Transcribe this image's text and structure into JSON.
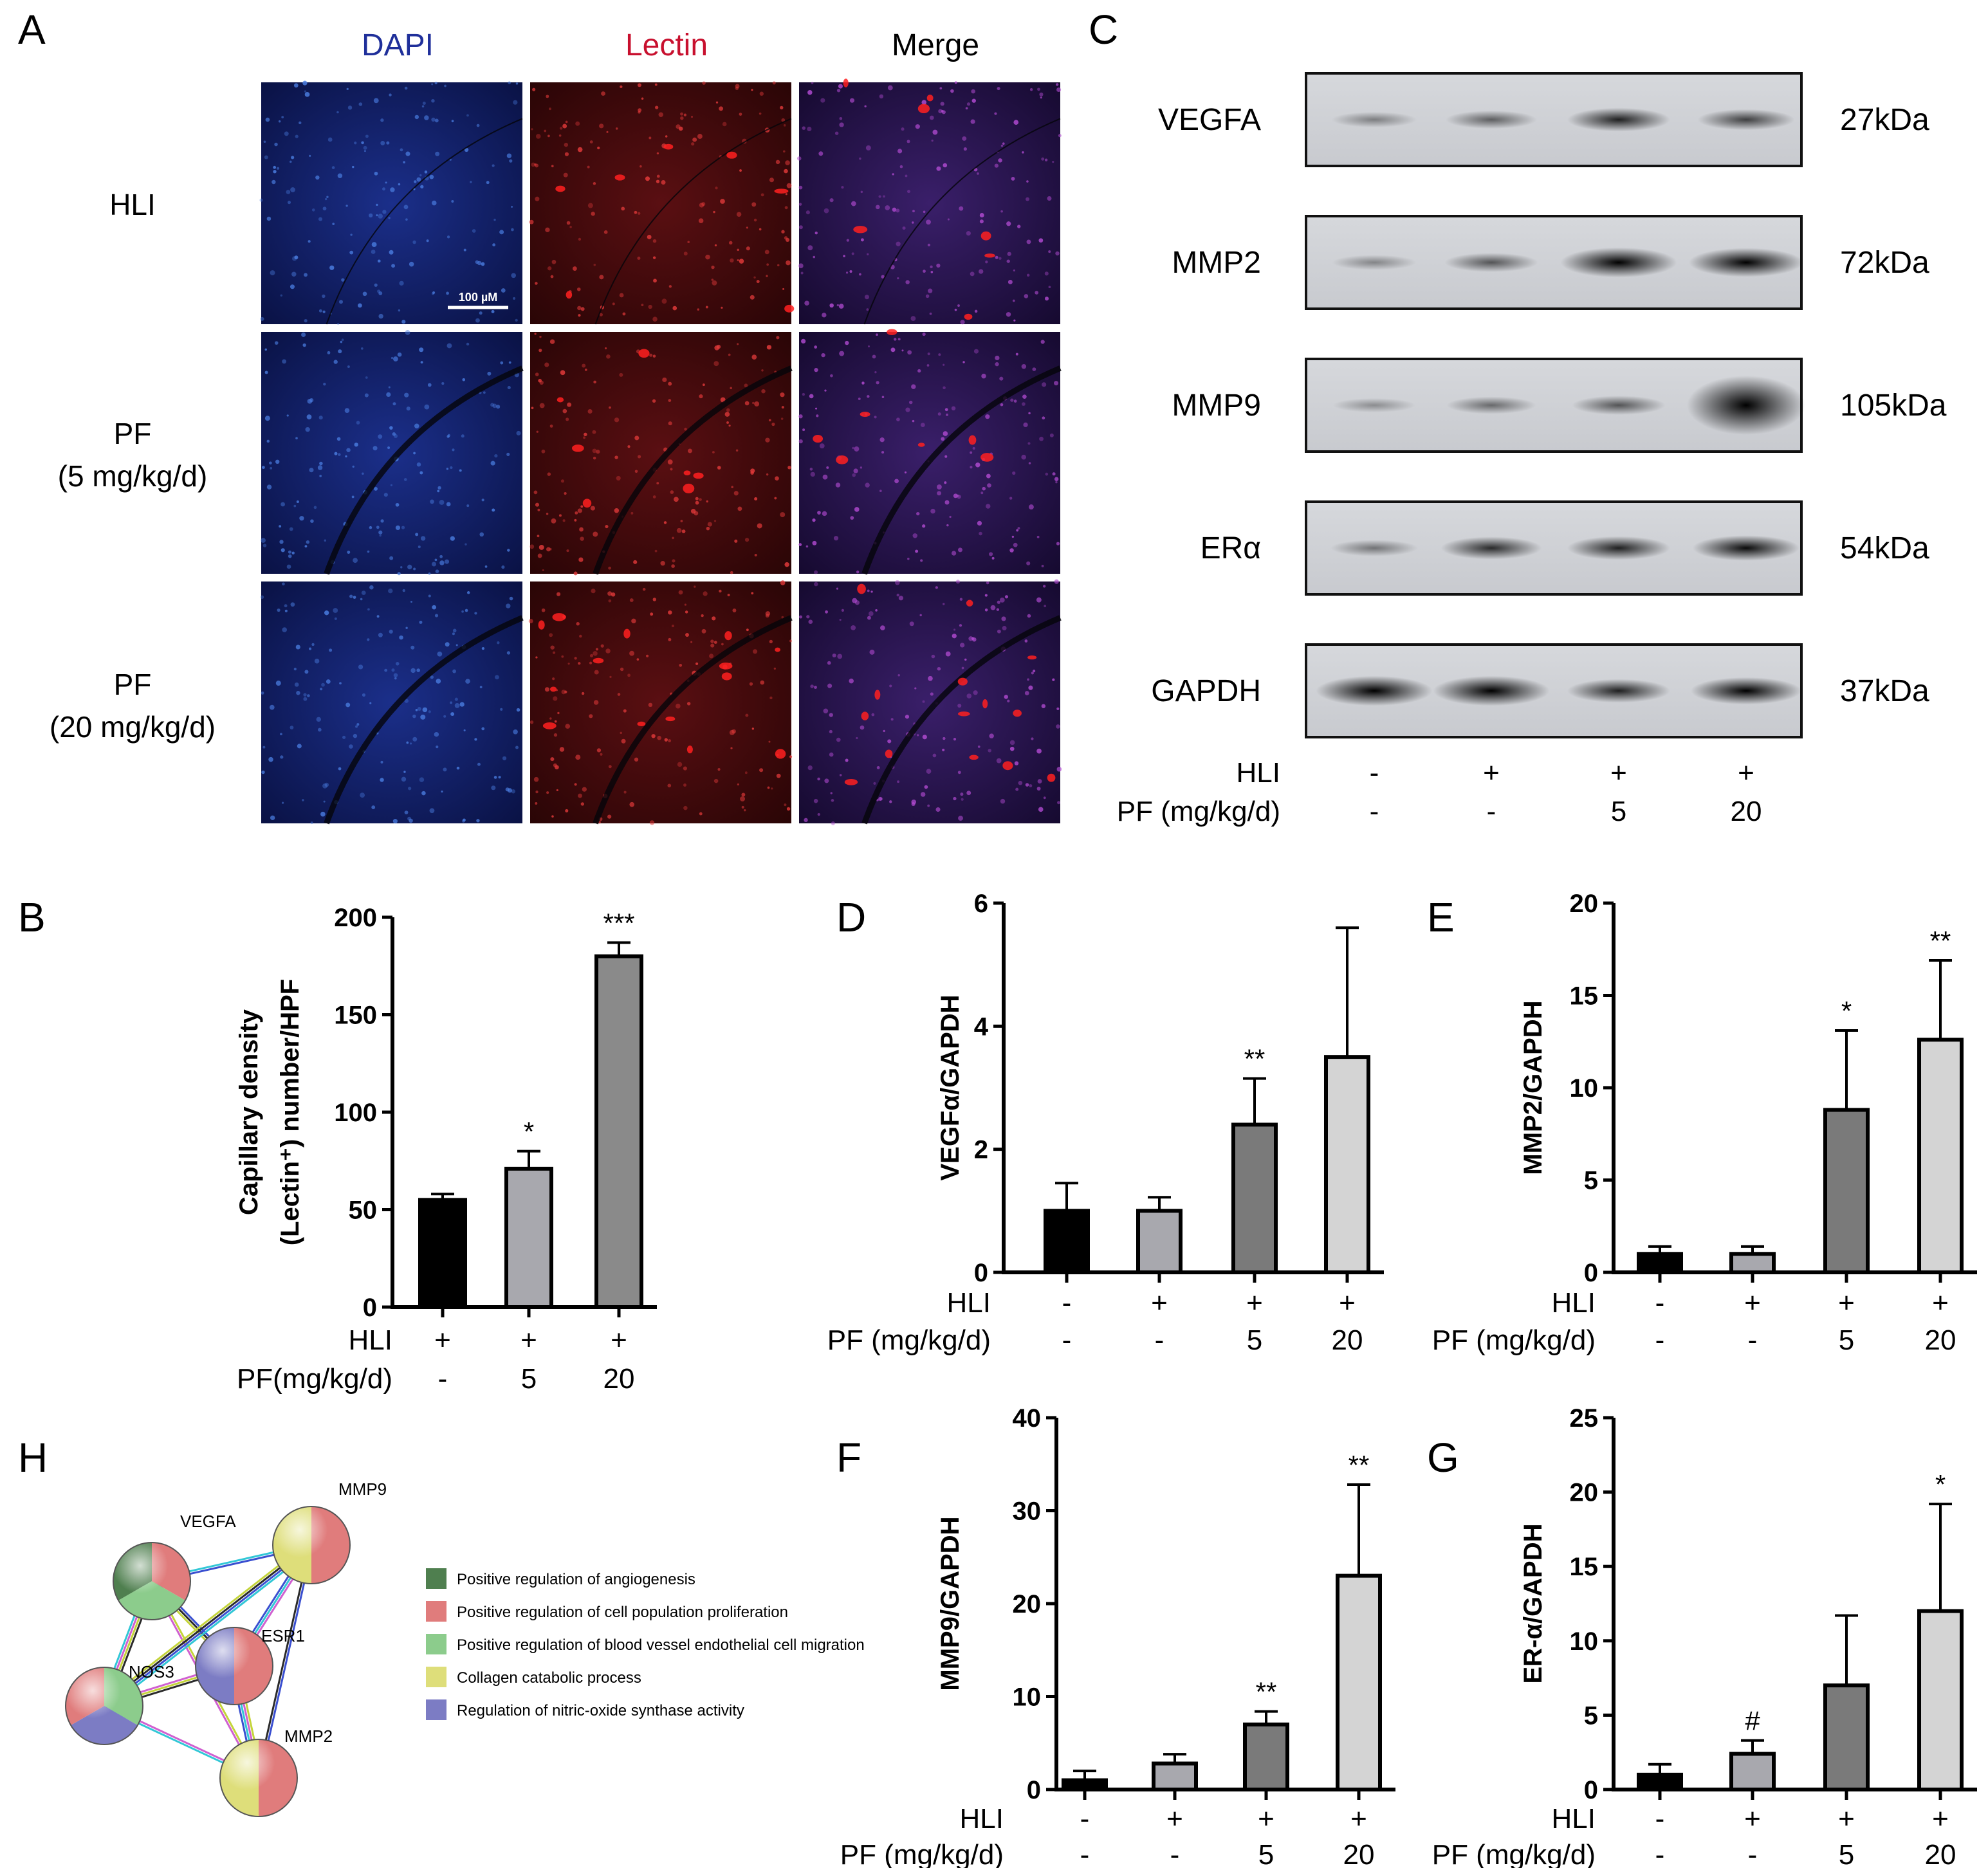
{
  "panels": {
    "A": "A",
    "B": "B",
    "C": "C",
    "D": "D",
    "E": "E",
    "F": "F",
    "G": "G",
    "H": "H"
  },
  "panel_a": {
    "columns": [
      "DAPI",
      "Lectin",
      "Merge"
    ],
    "column_colors": [
      "#1f2f9a",
      "#c8102e",
      "#111111"
    ],
    "rows": [
      {
        "line1": "HLI",
        "line2": ""
      },
      {
        "line1": "PF",
        "line2": "(5 mg/kg/d)"
      },
      {
        "line1": "PF",
        "line2": "(20 mg/kg/d)"
      }
    ],
    "scale_bar": "100 µM"
  },
  "panel_c": {
    "bands": [
      {
        "name": "VEGFA",
        "kda": "27kDa",
        "intensity": [
          0.15,
          0.3,
          0.6,
          0.45
        ]
      },
      {
        "name": "MMP2",
        "kda": "72kDa",
        "intensity": [
          0.12,
          0.35,
          0.95,
          0.9
        ]
      },
      {
        "name": "MMP9",
        "kda": "105kDa",
        "intensity": [
          0.08,
          0.25,
          0.35,
          1.0
        ]
      },
      {
        "name": "ERα",
        "kda": "54kDa",
        "intensity": [
          0.2,
          0.55,
          0.6,
          0.7
        ]
      },
      {
        "name": "GAPDH",
        "kda": "37kDa",
        "intensity": [
          0.95,
          0.95,
          0.6,
          0.8
        ]
      }
    ],
    "cond_rows": [
      {
        "label": "HLI",
        "values": [
          "-",
          "+",
          "+",
          "+"
        ]
      },
      {
        "label": "PF (mg/kg/d)",
        "values": [
          "-",
          "-",
          "5",
          "20"
        ]
      }
    ]
  },
  "chart_data": [
    {
      "id": "B",
      "type": "bar",
      "ylabel_line1": "Capillary density",
      "ylabel_line2": "(Lectin⁺) number/HPF",
      "ylim": [
        0,
        200
      ],
      "yticks": [
        "0",
        "50",
        "100",
        "150",
        "200"
      ],
      "values": [
        55,
        71,
        180
      ],
      "errors": [
        3,
        9,
        7
      ],
      "colors": [
        "#000000",
        "#a8a8ae",
        "#8a8a8a"
      ],
      "significance": [
        "",
        "*",
        "***"
      ],
      "cond_rows": [
        {
          "label": "HLI",
          "values": [
            "+",
            "+",
            "+"
          ]
        },
        {
          "label": "PF(mg/kg/d)",
          "values": [
            "-",
            "5",
            "20"
          ]
        }
      ]
    },
    {
      "id": "D",
      "type": "bar",
      "ylabel": "VEGFα/GAPDH",
      "ylim": [
        0,
        6
      ],
      "yticks": [
        "0",
        "2",
        "4",
        "6"
      ],
      "values": [
        1.0,
        1.0,
        2.4,
        3.5
      ],
      "errors": [
        0.45,
        0.22,
        0.75,
        2.1
      ],
      "colors": [
        "#000000",
        "#a8a8ae",
        "#7a7a7a",
        "#d4d4d4"
      ],
      "significance": [
        "",
        "",
        "**",
        ""
      ],
      "cond_rows": [
        {
          "label": "HLI",
          "values": [
            "-",
            "+",
            "+",
            "+"
          ]
        },
        {
          "label": "PF (mg/kg/d)",
          "values": [
            "-",
            "-",
            "5",
            "20"
          ]
        }
      ]
    },
    {
      "id": "E",
      "type": "bar",
      "ylabel": "MMP2/GAPDH",
      "ylim": [
        0,
        20
      ],
      "yticks": [
        "0",
        "5",
        "10",
        "15",
        "20"
      ],
      "values": [
        1.0,
        1.0,
        8.8,
        12.6
      ],
      "errors": [
        0.4,
        0.4,
        4.3,
        4.3
      ],
      "colors": [
        "#000000",
        "#a8a8ae",
        "#7a7a7a",
        "#d4d4d4"
      ],
      "significance": [
        "",
        "",
        "*",
        "**"
      ],
      "cond_rows": [
        {
          "label": "HLI",
          "values": [
            "-",
            "+",
            "+",
            "+"
          ]
        },
        {
          "label": "PF (mg/kg/d)",
          "values": [
            "-",
            "-",
            "5",
            "20"
          ]
        }
      ]
    },
    {
      "id": "F",
      "type": "bar",
      "ylabel": "MMP9/GAPDH",
      "ylim": [
        0,
        40
      ],
      "yticks": [
        "0",
        "10",
        "20",
        "30",
        "40"
      ],
      "values": [
        1.0,
        2.8,
        7.0,
        23.0
      ],
      "errors": [
        1.0,
        1.0,
        1.4,
        9.8
      ],
      "colors": [
        "#000000",
        "#a8a8ae",
        "#7a7a7a",
        "#d4d4d4"
      ],
      "significance": [
        "",
        "",
        "**",
        "**"
      ],
      "cond_rows": [
        {
          "label": "HLI",
          "values": [
            "-",
            "+",
            "+",
            "+"
          ]
        },
        {
          "label": "PF (mg/kg/d)",
          "values": [
            "-",
            "-",
            "5",
            "20"
          ]
        }
      ]
    },
    {
      "id": "G",
      "type": "bar",
      "ylabel": "ER-α/GAPDH",
      "ylim": [
        0,
        25
      ],
      "yticks": [
        "0",
        "5",
        "10",
        "15",
        "20",
        "25"
      ],
      "values": [
        1.0,
        2.4,
        7.0,
        12.0
      ],
      "errors": [
        0.7,
        0.9,
        4.7,
        7.2
      ],
      "colors": [
        "#000000",
        "#a8a8ae",
        "#7a7a7a",
        "#d4d4d4"
      ],
      "significance": [
        "",
        "#",
        "",
        "*"
      ],
      "cond_rows": [
        {
          "label": "HLI",
          "values": [
            "-",
            "+",
            "+",
            "+"
          ]
        },
        {
          "label": "PF (mg/kg/d)",
          "values": [
            "-",
            "-",
            "5",
            "20"
          ]
        }
      ]
    }
  ],
  "panel_h": {
    "nodes": [
      "VEGFA",
      "MMP9",
      "ESR1",
      "NOS3",
      "MMP2"
    ],
    "legend": [
      {
        "label": "Positive regulation of angiogenesis",
        "color": "#4f7f4f"
      },
      {
        "label": "Positive regulation of cell population proliferation",
        "color": "#e07c7c"
      },
      {
        "label": "Positive regulation of blood vessel endothelial cell migration",
        "color": "#8ccc8c"
      },
      {
        "label": "Collagen catabolic process",
        "color": "#dede7a"
      },
      {
        "label": "Regulation of nitric-oxide synthase activity",
        "color": "#7c7cc4"
      }
    ]
  }
}
